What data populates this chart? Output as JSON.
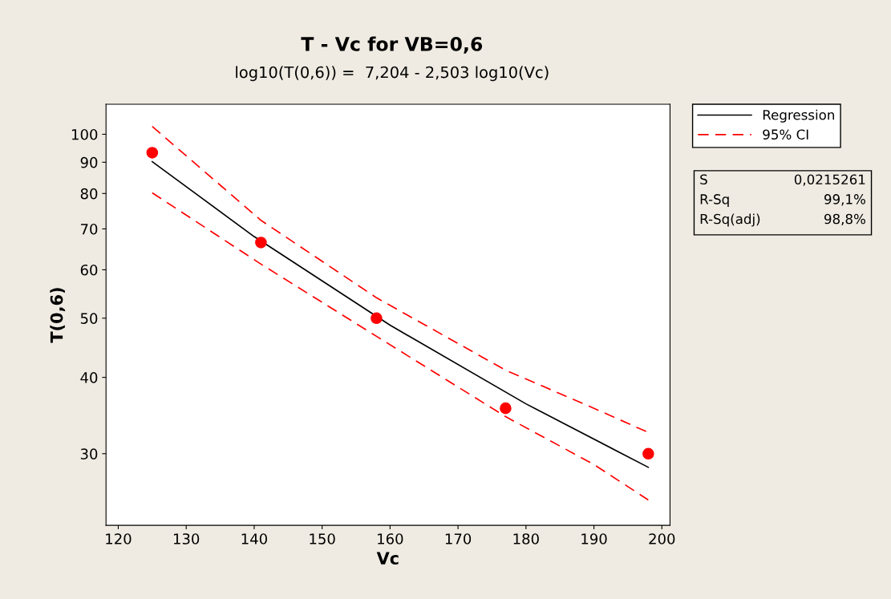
{
  "chart_data": {
    "type": "line",
    "title": "T - Vc for VB=0,6",
    "subtitle": "log10(T(0,6)) =  7,204 - 2,503 log10(Vc)",
    "xlabel": "Vc",
    "ylabel": "T(0,6)",
    "series": [
      {
        "name": "Regression",
        "color": "#000000",
        "line_style": "solid",
        "marker": "none",
        "x": [
          125,
          140,
          160,
          180,
          198
        ],
        "values": [
          90.2,
          68.0,
          48.7,
          36.2,
          28.5
        ]
      },
      {
        "name": "95% CI",
        "color": "#ff0000",
        "line_style": "dashed",
        "marker": "none",
        "x": [
          125,
          141,
          158,
          177,
          190,
          198
        ],
        "values": [
          103,
          72.3,
          54.0,
          41.1,
          35.6,
          32.5
        ]
      },
      {
        "color": "#ff0000",
        "line_style": "dashed",
        "marker": "none",
        "x": [
          125,
          141,
          158,
          177,
          190,
          198
        ],
        "values": [
          80.2,
          61.3,
          46.7,
          34.5,
          28.8,
          25.2
        ]
      },
      {
        "type": "scatter",
        "color": "#ff0000",
        "marker": "circle",
        "x": [
          125,
          141,
          158,
          177,
          198
        ],
        "values": [
          93.3,
          66.5,
          50.0,
          35.6,
          30.0
        ]
      }
    ],
    "log": "y",
    "xlim": [
      118.2,
      201.2
    ],
    "ylim": [
      22.9,
      112
    ],
    "xticks": [
      120,
      130,
      140,
      150,
      160,
      170,
      180,
      190,
      200
    ],
    "yticks": [
      30,
      40,
      50,
      60,
      70,
      80,
      90,
      100
    ],
    "grid": false,
    "legend": "right",
    "annotations": [
      "S",
      "0,0215261",
      "R-Sq",
      "99,1%",
      "R-Sq(adj)",
      "98,8%"
    ]
  }
}
